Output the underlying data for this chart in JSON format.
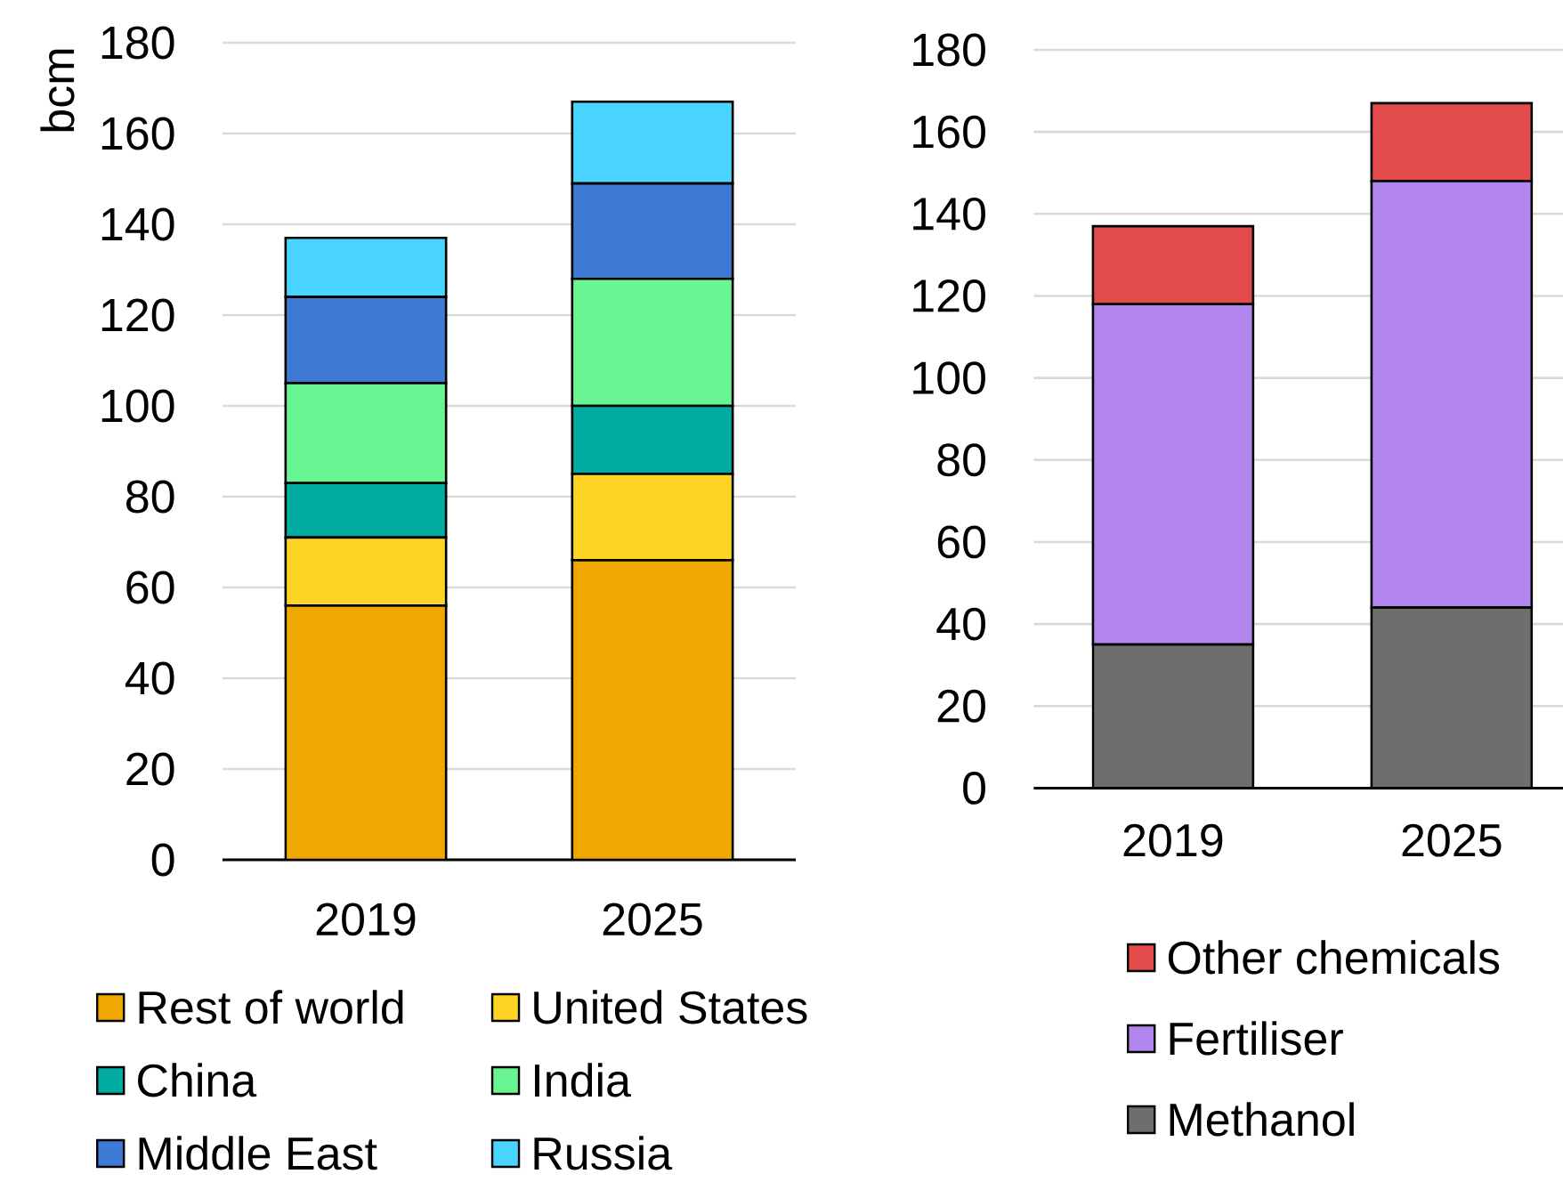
{
  "chart_data": [
    {
      "type": "bar",
      "stacked": true,
      "ylabel": "bcm",
      "categories": [
        "2019",
        "2025"
      ],
      "series": [
        {
          "name": "Rest of world",
          "color": "#f0a800",
          "values": [
            56,
            66
          ]
        },
        {
          "name": "United States",
          "color": "#fed426",
          "values": [
            15,
            19
          ]
        },
        {
          "name": "China",
          "color": "#00ab9f",
          "values": [
            12,
            15
          ]
        },
        {
          "name": "India",
          "color": "#69f592",
          "values": [
            22,
            28
          ]
        },
        {
          "name": "Middle East",
          "color": "#3e7ad4",
          "values": [
            19,
            21
          ]
        },
        {
          "name": "Russia",
          "color": "#48d4fe",
          "values": [
            13,
            18
          ]
        }
      ],
      "ylim": [
        0,
        180
      ],
      "yticks": [
        0,
        20,
        40,
        60,
        80,
        100,
        120,
        140,
        160,
        180
      ],
      "grid": "y",
      "legend": "bottom"
    },
    {
      "type": "bar",
      "stacked": true,
      "categories": [
        "2019",
        "2025"
      ],
      "series": [
        {
          "name": "Methanol",
          "color": "#6d6f6d",
          "values": [
            35,
            44
          ]
        },
        {
          "name": "Fertiliser",
          "color": "#b185ed",
          "values": [
            83,
            104
          ]
        },
        {
          "name": "Other chemicals",
          "color": "#e34b4a",
          "values": [
            19,
            19
          ]
        }
      ],
      "ylim": [
        0,
        180
      ],
      "yticks": [
        0,
        20,
        40,
        60,
        80,
        100,
        120,
        140,
        160,
        180
      ],
      "grid": "y",
      "legend": "bottom"
    }
  ]
}
